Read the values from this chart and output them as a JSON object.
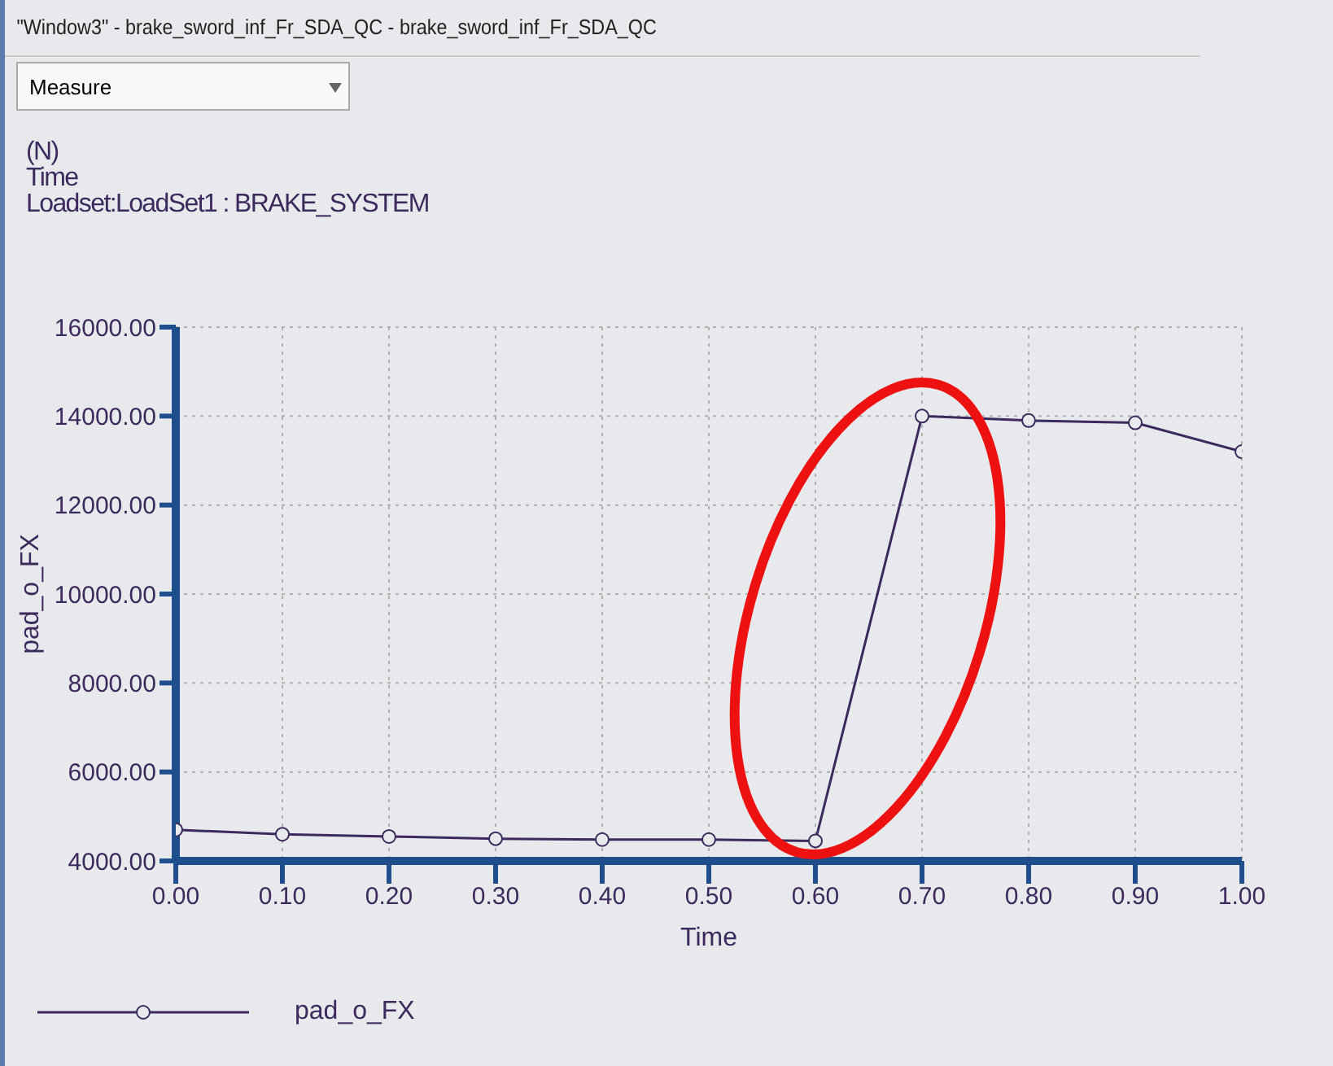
{
  "chart_data": {
    "type": "line",
    "title": "\"Window3\" - brake_sword_inf_Fr_SDA_QC - brake_sword_inf_Fr_SDA_QC",
    "annotations": [
      "Measure",
      "(N)",
      "Time",
      "Loadset:LoadSet1 :  BRAKE_SYSTEM"
    ],
    "xlabel": "Time",
    "ylabel": "pad_o_FX",
    "x": [
      0,
      0.1,
      0.2,
      0.3,
      0.4,
      0.5,
      0.6,
      0.7,
      0.8,
      0.9,
      1.0
    ],
    "series": [
      {
        "name": "pad_o_FX",
        "color": "#3c2a5c",
        "values": [
          4700,
          4600,
          4550,
          4500,
          4480,
          4480,
          4450,
          14000,
          13900,
          13850,
          13200
        ]
      }
    ],
    "xlim": [
      0,
      1
    ],
    "xticks": [
      {
        "value": 0,
        "label": "0.00"
      },
      {
        "value": 0.1,
        "label": "0.10"
      },
      {
        "value": 0.2,
        "label": "0.20"
      },
      {
        "value": 0.3,
        "label": "0.30"
      },
      {
        "value": 0.4,
        "label": "0.40"
      },
      {
        "value": 0.5,
        "label": "0.50"
      },
      {
        "value": 0.6,
        "label": "0.60"
      },
      {
        "value": 0.7,
        "label": "0.70"
      },
      {
        "value": 0.8,
        "label": "0.80"
      },
      {
        "value": 0.9,
        "label": "0.90"
      },
      {
        "value": 1,
        "label": "1.00"
      }
    ],
    "ylim": [
      4000,
      16000
    ],
    "yticks": [
      {
        "value": 4000,
        "label": "4000.00"
      },
      {
        "value": 6000,
        "label": "6000.00"
      },
      {
        "value": 8000,
        "label": "8000.00"
      },
      {
        "value": 10000,
        "label": "10000.00"
      },
      {
        "value": 12000,
        "label": "12000.00"
      },
      {
        "value": 14000,
        "label": "14000.00"
      },
      {
        "value": 16000,
        "label": "16000.00"
      }
    ],
    "grid": true,
    "legend": "bottom left",
    "marker": "circle",
    "line_style": "solid"
  }
}
